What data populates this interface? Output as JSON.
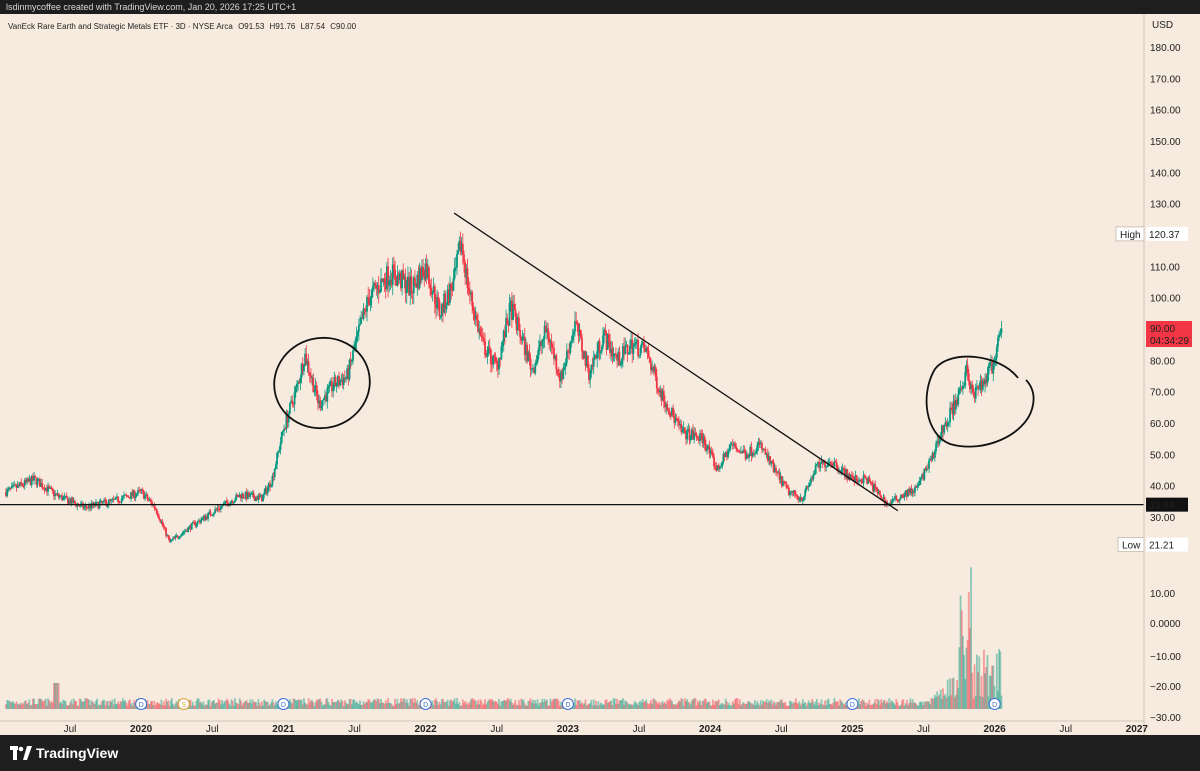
{
  "header": {
    "text": "lsdinmycoffee created with TradingView.com, Jan 20, 2026 17:25 UTC+1"
  },
  "legend": {
    "title": "VanEck Rare Earth and Strategic Metals ETF · 3D · NYSE Arca",
    "open": "O91.53",
    "high": "H91.76",
    "low": "L87.54",
    "close": "C90.00"
  },
  "footer": {
    "brand": "TradingView"
  },
  "colors": {
    "up": "#089981",
    "down": "#f23645",
    "line": "#111111",
    "background": "#f7ebdf",
    "price_tag": "#f23645"
  },
  "chart_data": {
    "type": "candlestick",
    "currency": "USD",
    "price_axis": {
      "ticks": [
        30,
        40,
        50,
        60,
        70,
        80,
        90,
        100,
        110,
        120,
        130,
        140,
        150,
        160,
        170,
        180
      ],
      "labels": [
        "30.00",
        "40.00",
        "50.00",
        "60.00",
        "70.00",
        "80.00",
        "90.00",
        "100.00",
        "110.00",
        "120.00",
        "130.00",
        "140.00",
        "150.00",
        "160.00",
        "170.00",
        "180.00"
      ],
      "range": [
        20,
        187
      ]
    },
    "volume_axis": {
      "ticks": [
        10,
        0,
        -10,
        -20,
        -30
      ],
      "labels": [
        "10.00",
        "0.0000",
        "−10.00",
        "−20.00",
        "−30.00"
      ]
    },
    "x_axis": {
      "labels": [
        {
          "t": "Jul",
          "x": 2019.5,
          "bold": false
        },
        {
          "t": "2020",
          "x": 2020.0,
          "bold": true
        },
        {
          "t": "Jul",
          "x": 2020.5,
          "bold": false
        },
        {
          "t": "2021",
          "x": 2021.0,
          "bold": true
        },
        {
          "t": "Jul",
          "x": 2021.5,
          "bold": false
        },
        {
          "t": "2022",
          "x": 2022.0,
          "bold": true
        },
        {
          "t": "Jul",
          "x": 2022.5,
          "bold": false
        },
        {
          "t": "2023",
          "x": 2023.0,
          "bold": true
        },
        {
          "t": "Jul",
          "x": 2023.5,
          "bold": false
        },
        {
          "t": "2024",
          "x": 2024.0,
          "bold": true
        },
        {
          "t": "Jul",
          "x": 2024.5,
          "bold": false
        },
        {
          "t": "2025",
          "x": 2025.0,
          "bold": true
        },
        {
          "t": "Jul",
          "x": 2025.5,
          "bold": false
        },
        {
          "t": "2026",
          "x": 2026.0,
          "bold": true
        },
        {
          "t": "Jul",
          "x": 2026.5,
          "bold": false
        },
        {
          "t": "2027",
          "x": 2027.0,
          "bold": true
        }
      ],
      "range": [
        2019.05,
        2027.05
      ]
    },
    "price_path": [
      [
        2019.05,
        38
      ],
      [
        2019.25,
        42
      ],
      [
        2019.4,
        37
      ],
      [
        2019.6,
        33
      ],
      [
        2019.8,
        35
      ],
      [
        2020.0,
        38
      ],
      [
        2020.1,
        33
      ],
      [
        2020.2,
        22
      ],
      [
        2020.35,
        27
      ],
      [
        2020.55,
        33
      ],
      [
        2020.7,
        37
      ],
      [
        2020.85,
        36
      ],
      [
        2020.92,
        42
      ],
      [
        2021.0,
        58
      ],
      [
        2021.1,
        72
      ],
      [
        2021.15,
        82
      ],
      [
        2021.25,
        66
      ],
      [
        2021.35,
        72
      ],
      [
        2021.45,
        75
      ],
      [
        2021.55,
        92
      ],
      [
        2021.6,
        100
      ],
      [
        2021.75,
        108
      ],
      [
        2021.9,
        103
      ],
      [
        2022.0,
        110
      ],
      [
        2022.1,
        95
      ],
      [
        2022.2,
        105
      ],
      [
        2022.25,
        118
      ],
      [
        2022.3,
        103
      ],
      [
        2022.4,
        85
      ],
      [
        2022.5,
        78
      ],
      [
        2022.6,
        97
      ],
      [
        2022.75,
        77
      ],
      [
        2022.85,
        90
      ],
      [
        2022.95,
        74
      ],
      [
        2023.05,
        92
      ],
      [
        2023.15,
        76
      ],
      [
        2023.25,
        88
      ],
      [
        2023.35,
        80
      ],
      [
        2023.45,
        85
      ],
      [
        2023.55,
        83
      ],
      [
        2023.65,
        70
      ],
      [
        2023.8,
        57
      ],
      [
        2023.95,
        55
      ],
      [
        2024.05,
        45
      ],
      [
        2024.15,
        53
      ],
      [
        2024.25,
        50
      ],
      [
        2024.35,
        53
      ],
      [
        2024.45,
        45
      ],
      [
        2024.55,
        38
      ],
      [
        2024.65,
        36
      ],
      [
        2024.75,
        46
      ],
      [
        2024.85,
        48
      ],
      [
        2025.0,
        42
      ],
      [
        2025.1,
        42
      ],
      [
        2025.25,
        34
      ],
      [
        2025.35,
        37
      ],
      [
        2025.45,
        39
      ],
      [
        2025.55,
        48
      ],
      [
        2025.65,
        60
      ],
      [
        2025.75,
        68
      ],
      [
        2025.8,
        77
      ],
      [
        2025.85,
        68
      ],
      [
        2025.92,
        73
      ],
      [
        2026.0,
        80
      ],
      [
        2026.05,
        90
      ]
    ],
    "volume_hint": "volume bars rise sharply in late 2025 with peaks near 2025.8",
    "levels": {
      "support": {
        "label": "33.94",
        "value": 33.94
      },
      "high": {
        "label": "High",
        "value_label": "120.37",
        "value": 120.37
      },
      "low": {
        "label": "Low",
        "value_label": "21.21",
        "value": 21.21
      },
      "last": {
        "label": "90.00",
        "countdown": "04:34:29",
        "value": 90.0
      }
    },
    "trendline": {
      "from": [
        2022.2,
        127
      ],
      "to": [
        2025.32,
        32
      ]
    },
    "dividend_markers": [
      {
        "x": 2020.0,
        "label": "D"
      },
      {
        "x": 2020.3,
        "label": "S"
      },
      {
        "x": 2021.0,
        "label": "D"
      },
      {
        "x": 2022.0,
        "label": "D"
      },
      {
        "x": 2023.0,
        "label": "D"
      },
      {
        "x": 2025.0,
        "label": "D"
      },
      {
        "x": 2026.0,
        "label": "D"
      }
    ]
  }
}
